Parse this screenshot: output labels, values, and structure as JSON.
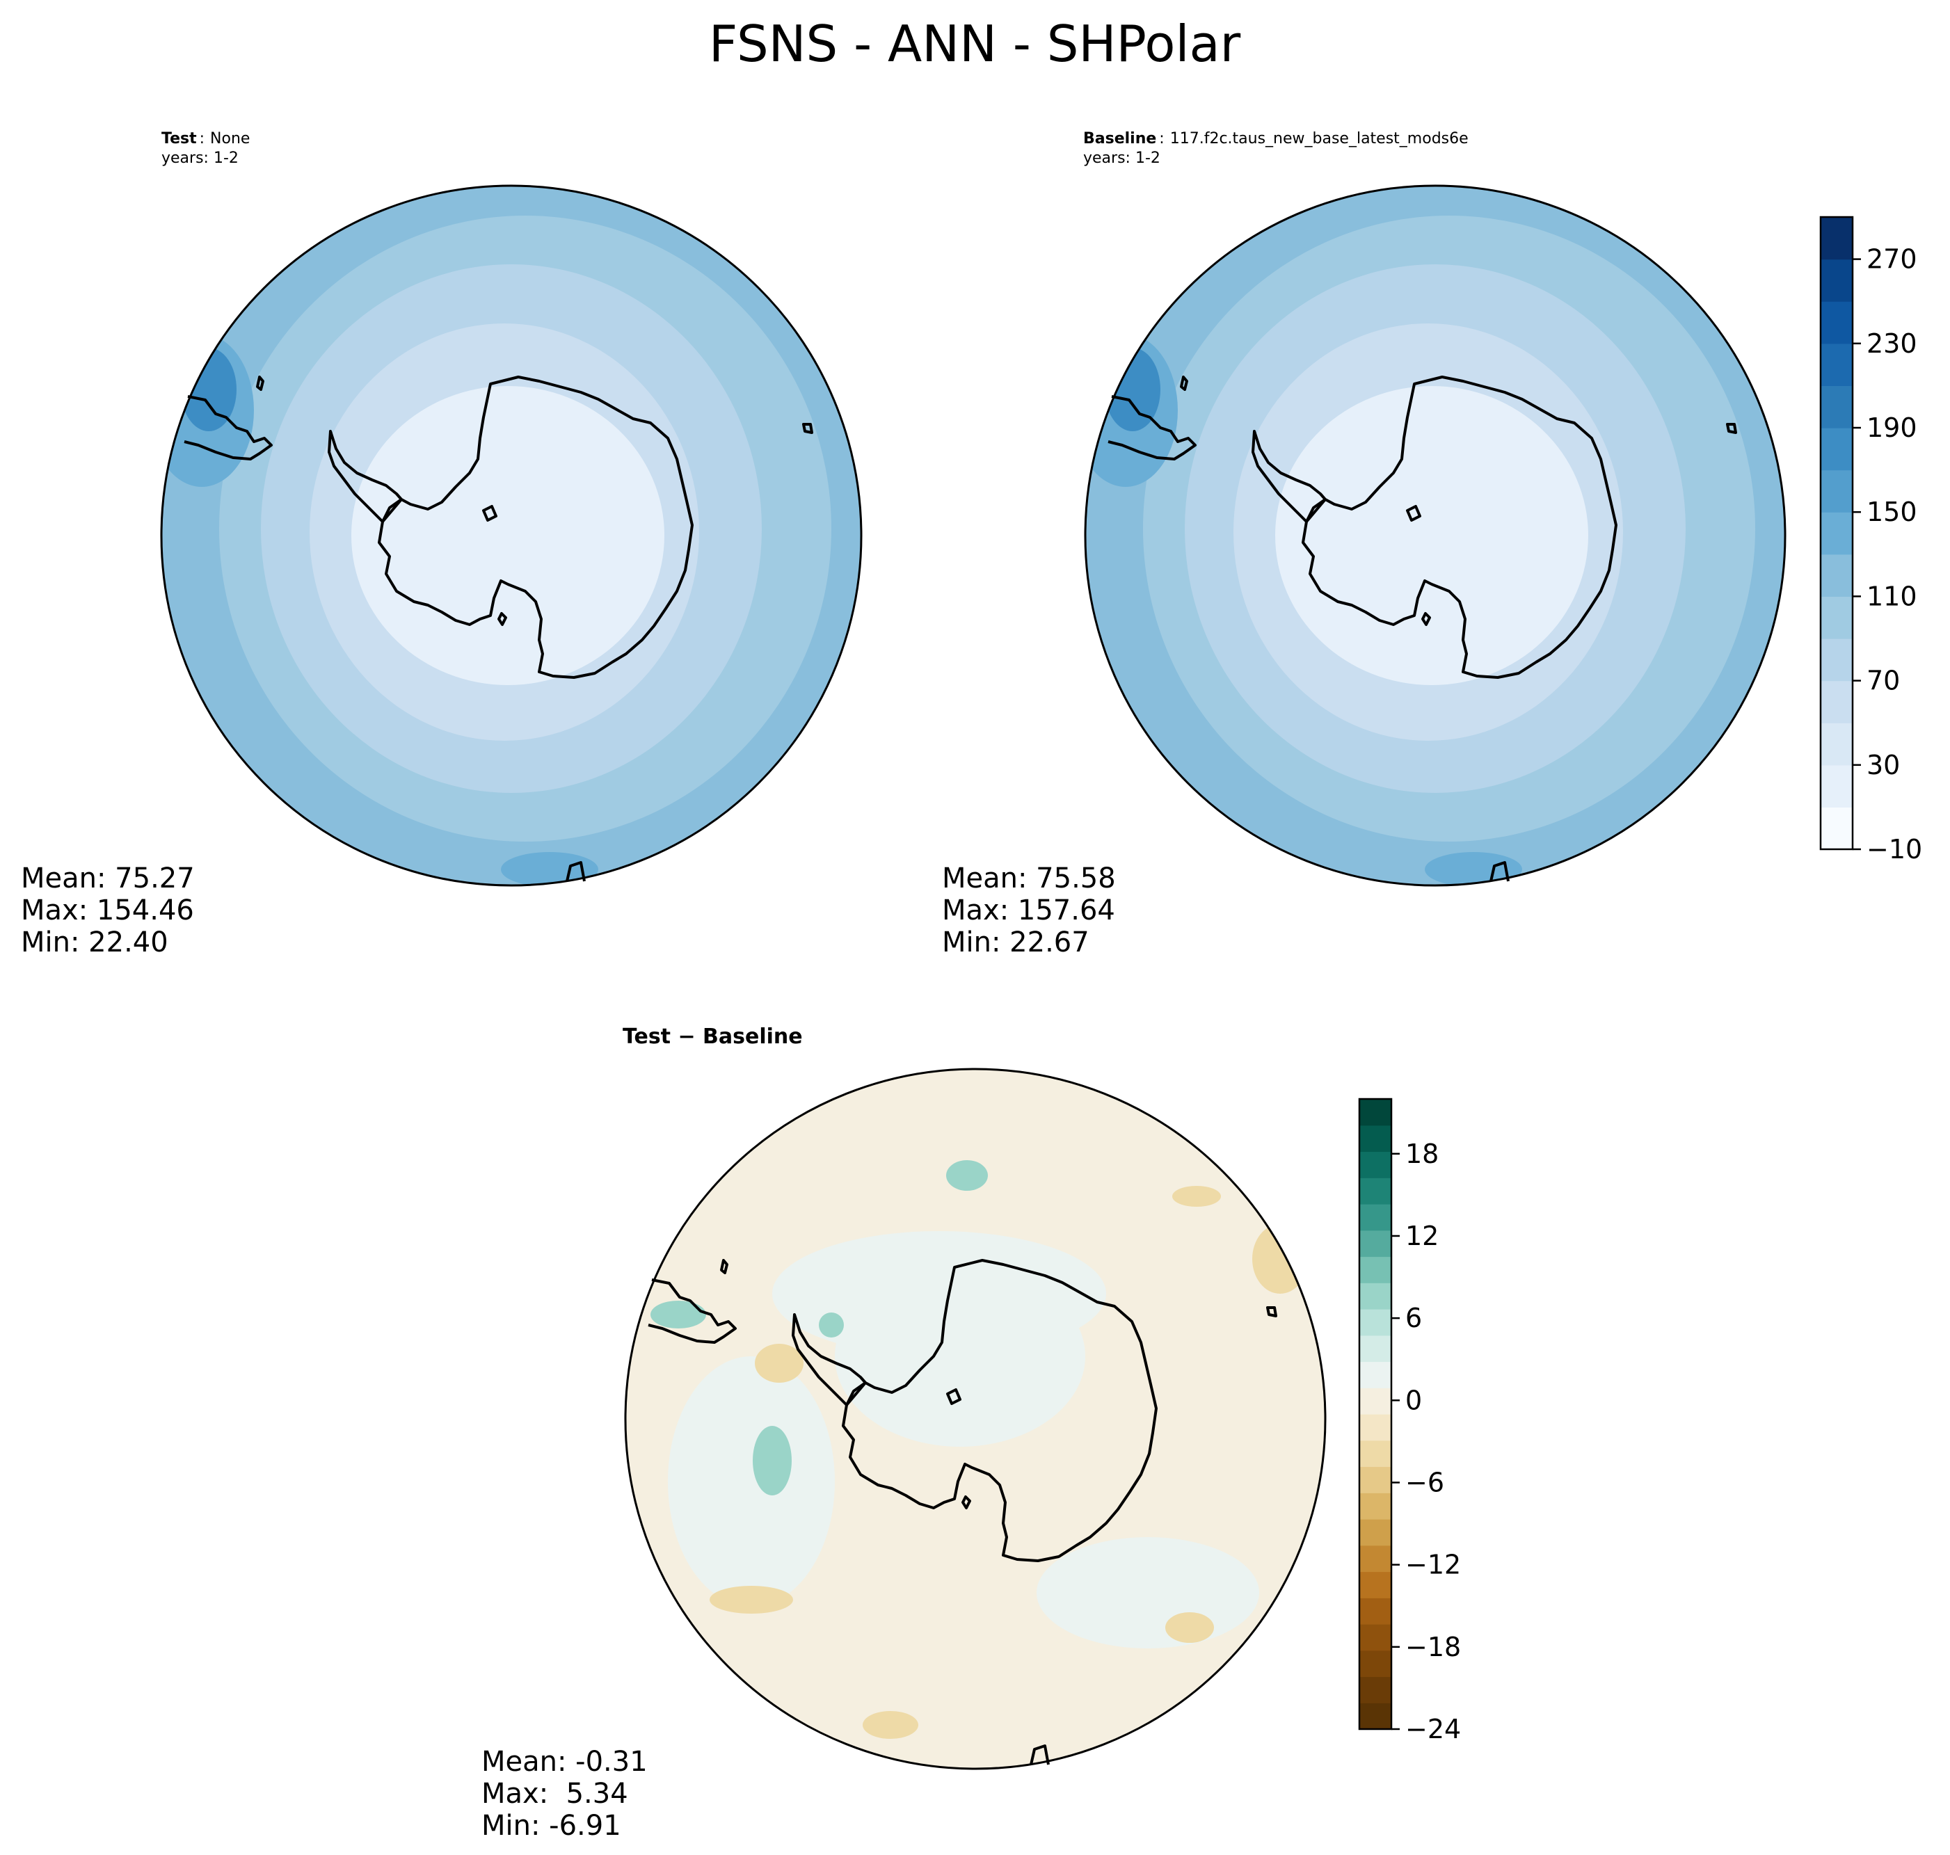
{
  "figure": {
    "title": "FSNS - ANN - SHPolar"
  },
  "panels": [
    {
      "id": "test",
      "label_bold": "Test",
      "label_sep": ":",
      "label_value": "None",
      "years": "years: 1-2",
      "stats": {
        "mean": "Mean: 75.27",
        "max": "Max: 154.46",
        "min": "Min: 22.40"
      }
    },
    {
      "id": "baseline",
      "label_bold": "Baseline",
      "label_sep": ":",
      "label_value": "117.f2c.taus_new_base_latest_mods6e",
      "years": "years: 1-2",
      "stats": {
        "mean": "Mean: 75.58",
        "max": "Max: 157.64",
        "min": "Min: 22.67"
      }
    },
    {
      "id": "diff",
      "label_bold": "Test − Baseline",
      "stats": {
        "mean": "Mean: -0.31",
        "max": "Max:  5.34",
        "min": "Min: -6.91"
      }
    }
  ],
  "colorbars": {
    "main": {
      "range": [
        -10,
        290
      ],
      "ticks": [
        "270",
        "230",
        "190",
        "150",
        "110",
        "70",
        "30",
        "−10"
      ],
      "tick_values": [
        270,
        230,
        190,
        150,
        110,
        70,
        30,
        -10
      ],
      "colors": [
        "#f7fbff",
        "#e6f0fa",
        "#d9e8f5",
        "#cadef0",
        "#b6d4ea",
        "#a0cbe2",
        "#89bedc",
        "#6aaed6",
        "#539ecd",
        "#3d8dc4",
        "#2c7bb6",
        "#1c6aaf",
        "#0f58a2",
        "#09468b",
        "#08306b"
      ]
    },
    "diff": {
      "range": [
        -24,
        22
      ],
      "ticks": [
        "18",
        "12",
        "6",
        "0",
        "−6",
        "−12",
        "−18",
        "−24"
      ],
      "tick_values": [
        18,
        12,
        6,
        0,
        -6,
        -12,
        -18,
        -24
      ],
      "colors": [
        "#5a3405",
        "#6a3c07",
        "#7d4709",
        "#8f520d",
        "#a25f13",
        "#b7731f",
        "#c38832",
        "#cfa04b",
        "#dcb668",
        "#e6c988",
        "#eedaa7",
        "#f4e6c6",
        "#f5efe0",
        "#ebf3f1",
        "#d4ece7",
        "#b9e2da",
        "#9ad4c8",
        "#77c1b3",
        "#55ab9e",
        "#36978a",
        "#1e8476",
        "#0d7063",
        "#045c4f",
        "#01473b"
      ]
    }
  },
  "map_fill_colors": {
    "outer": "#89bedc",
    "ring2": "#a0cbe2",
    "ring3": "#b6d4ea",
    "ring4": "#cadef0",
    "inner": "#e6f0fa",
    "patch_dark": "#3d8dc4",
    "patch_mid": "#6aaed6",
    "diff_base": "#f5efe0",
    "diff_light_green": "#ebf3f1",
    "diff_green": "#9ad4c8",
    "diff_tan": "#eedaa7"
  }
}
